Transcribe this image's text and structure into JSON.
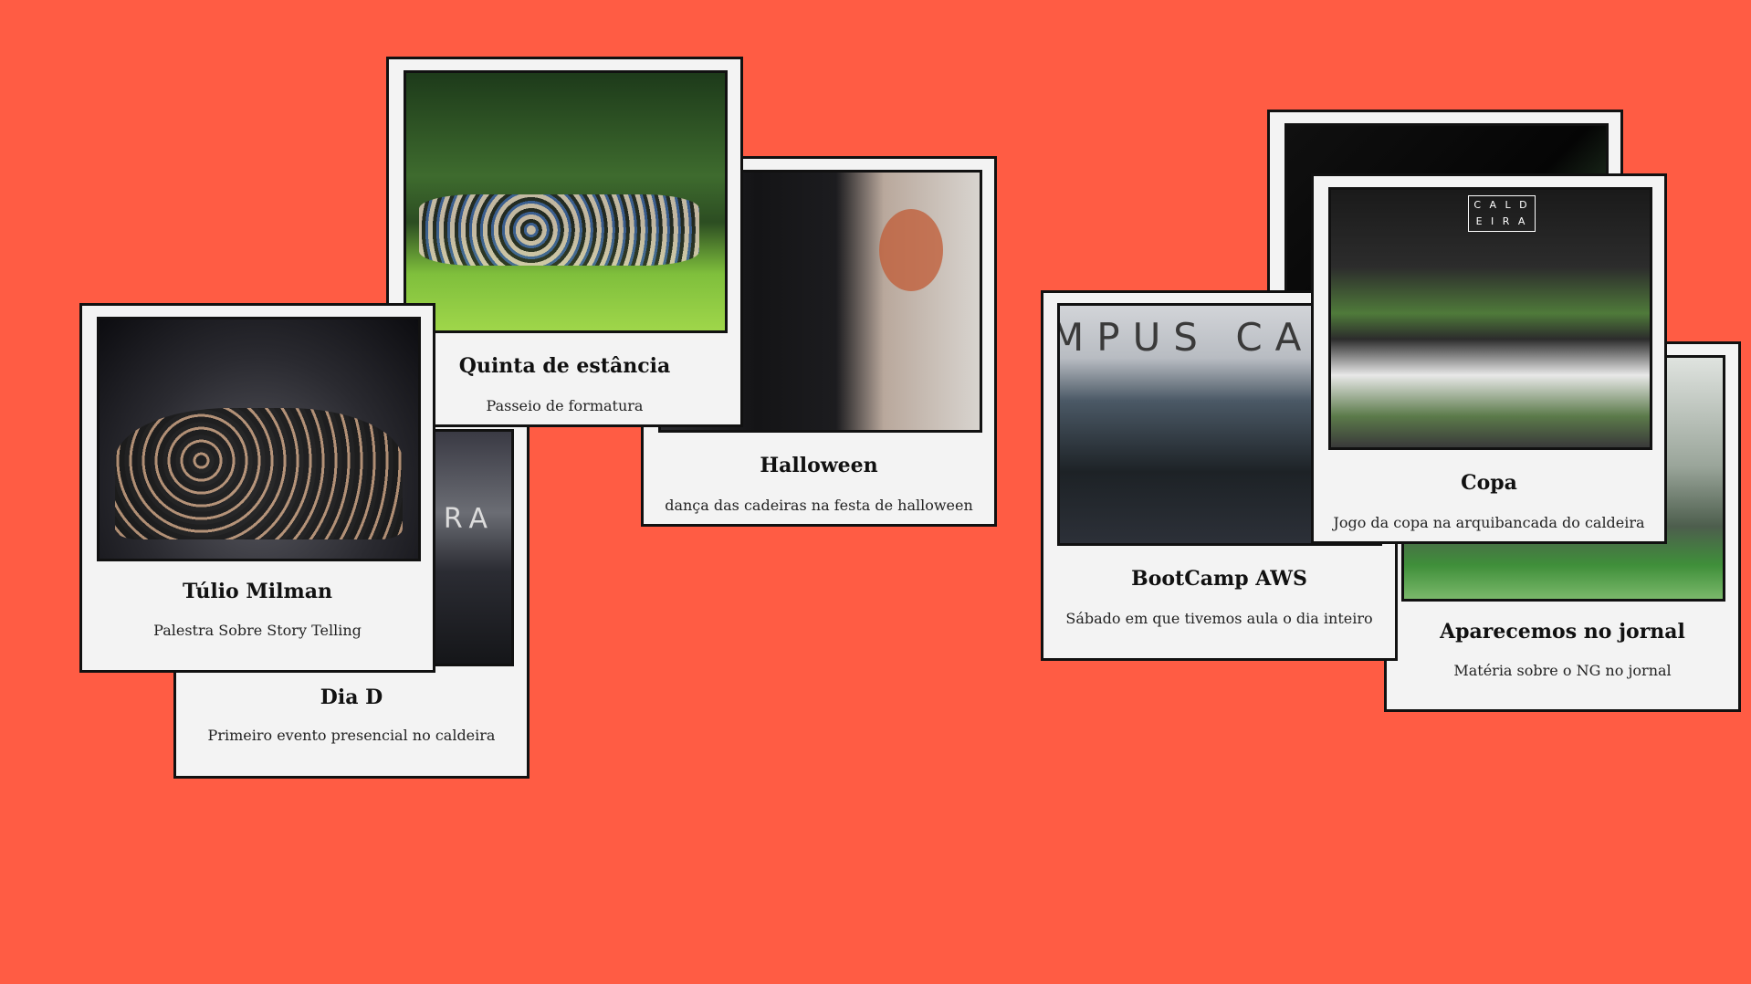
{
  "background_color": "#ff5c44",
  "cards": [
    {
      "id": "dia-d",
      "title": "Dia D",
      "description": "Primeiro evento presencial no caldeira",
      "photo_text": "RA"
    },
    {
      "id": "tulio",
      "title": "Túlio Milman",
      "description": "Palestra Sobre Story Telling"
    },
    {
      "id": "quinta",
      "title": "Quinta de estância",
      "description": "Passeio de formatura"
    },
    {
      "id": "halloween",
      "title": "Halloween",
      "description": "dança das cadeiras na festa de halloween"
    },
    {
      "id": "bootcamp",
      "title": "BootCamp AWS",
      "description": "Sábado em que tivemos aula o dia inteiro",
      "photo_text": "MPUS CA"
    },
    {
      "id": "jornal",
      "title": "Aparecemos no jornal",
      "description": "Matéria sobre o NG no jornal"
    },
    {
      "id": "back",
      "title": "",
      "description": ""
    },
    {
      "id": "copa",
      "title": "Copa",
      "description": "Jogo da copa na arquibancada do caldeira",
      "photo_text": "C A L D E I R A"
    }
  ]
}
